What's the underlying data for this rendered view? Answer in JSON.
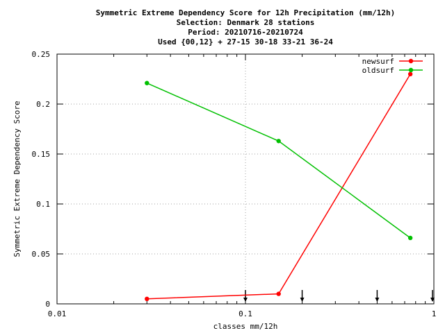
{
  "chart_data": {
    "type": "line",
    "title_lines": [
      "Symmetric Extreme Dependency Score  for 12h Precipitation (mm/12h)",
      "Selection: Denmark     28 stations",
      "Period: 20210716-20210724",
      "Used {00,12} + 27-15 30-18 33-21 36-24"
    ],
    "xlabel": "classes mm/12h",
    "ylabel": "Symmetric Extreme Dependency Score",
    "x_scale": "log",
    "xlim": [
      0.01,
      1
    ],
    "ylim": [
      0,
      0.25
    ],
    "x_ticks": [
      {
        "value": 0.01,
        "label": "0.01"
      },
      {
        "value": 0.1,
        "label": "0.1"
      },
      {
        "value": 1,
        "label": "1"
      }
    ],
    "y_ticks": [
      {
        "value": 0,
        "label": "0"
      },
      {
        "value": 0.05,
        "label": "0.05"
      },
      {
        "value": 0.1,
        "label": "0.1"
      },
      {
        "value": 0.15,
        "label": "0.15"
      },
      {
        "value": 0.2,
        "label": "0.2"
      },
      {
        "value": 0.25,
        "label": "0.25"
      }
    ],
    "grid": true,
    "legend_position": "top-right",
    "series": [
      {
        "name": "newsurf",
        "color": "#ff0000",
        "x": [
          0.03,
          0.15,
          0.75
        ],
        "y": [
          0.005,
          0.01,
          0.23
        ]
      },
      {
        "name": "oldsurf",
        "color": "#00c000",
        "x": [
          0.03,
          0.15,
          0.75
        ],
        "y": [
          0.221,
          0.163,
          0.066
        ]
      }
    ],
    "class_markers": [
      0.1,
      0.2,
      0.5,
      1.0
    ]
  }
}
